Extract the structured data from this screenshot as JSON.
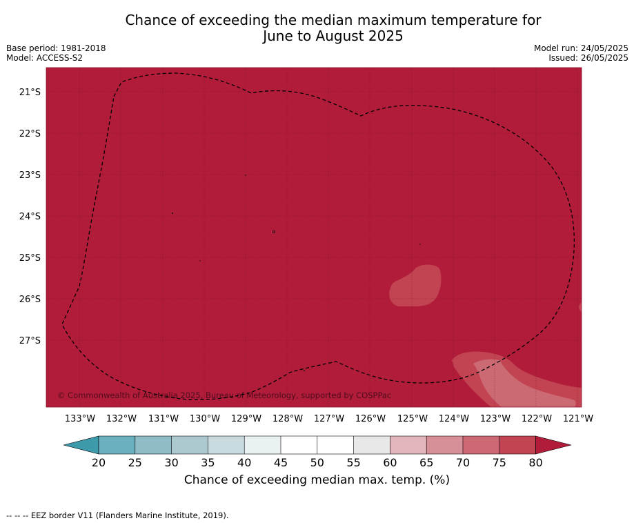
{
  "header": {
    "title_line1": "Chance of exceeding the median maximum temperature for",
    "title_line2": "June to August 2025",
    "base_period": "Base period: 1981-2018",
    "model": "Model: ACCESS-S2",
    "model_run": "Model run: 24/05/2025",
    "issued": "Issued: 26/05/2025"
  },
  "map": {
    "copyright": "© Commonwealth of Australia 2025, Bureau of Meteorology, supported by COSPPac",
    "lat_labels": [
      "21°S",
      "22°S",
      "23°S",
      "24°S",
      "25°S",
      "26°S",
      "27°S"
    ],
    "lon_labels": [
      "133°W",
      "132°W",
      "131°W",
      "130°W",
      "129°W",
      "128°W",
      "127°W",
      "126°W",
      "125°W",
      "124°W",
      "123°W",
      "122°W",
      "121°W"
    ],
    "background_fill_percent": ">80",
    "border_style": "dashed",
    "colors": {
      "above_80": "#b01c3a",
      "range_75_80": "#c24452",
      "range_70_75": "#cc6a74"
    }
  },
  "colorbar": {
    "title": "Chance of exceeding median max. temp. (%)",
    "tick_labels": [
      "20",
      "25",
      "30",
      "35",
      "40",
      "45",
      "50",
      "55",
      "60",
      "65",
      "70",
      "75",
      "80"
    ],
    "colors": [
      "#3d9aab",
      "#6ab0bf",
      "#8fbcc7",
      "#acc9cf",
      "#c9dbdf",
      "#eaf1f3",
      "#ffffff",
      "#ffffff",
      "#e8e8e9",
      "#e2b5bc",
      "#d78f98",
      "#cb6874",
      "#c24452",
      "#b01c3a"
    ]
  },
  "footer": {
    "eez_note": "--  --  -- EEZ border V11 (Flanders Marine Institute, 2019)."
  }
}
